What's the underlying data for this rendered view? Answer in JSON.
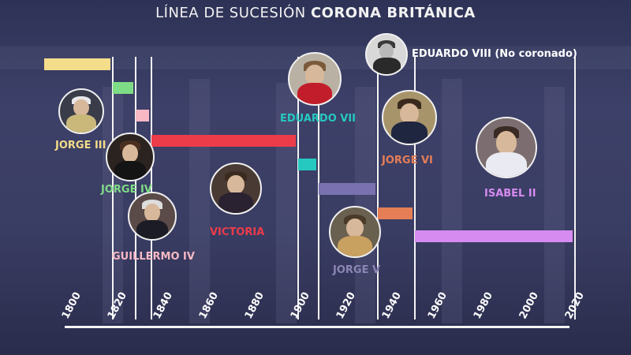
{
  "title": {
    "prefix": "LÍNEA DE SUCESIÓN",
    "bold": "CORONA BRITÁNICA"
  },
  "chart_data": {
    "type": "bar",
    "orientation": "horizontal-timeline",
    "xlabel": "",
    "xlim": [
      1790,
      2025
    ],
    "ticks": [
      1800,
      1820,
      1840,
      1860,
      1880,
      1900,
      1920,
      1940,
      1960,
      1980,
      2000,
      2020
    ],
    "reigns": [
      {
        "name": "JORGE III",
        "start": 1790,
        "end": 1820,
        "color": "#f3dc8a"
      },
      {
        "name": "JORGE IV",
        "start": 1820,
        "end": 1830,
        "color": "#7fdc86"
      },
      {
        "name": "GUILLERMO IV",
        "start": 1830,
        "end": 1837,
        "color": "#f7b8c4"
      },
      {
        "name": "VICTORIA",
        "start": 1837,
        "end": 1901,
        "color": "#ec3c4a"
      },
      {
        "name": "EDUARDO VII",
        "start": 1901,
        "end": 1910,
        "color": "#25c9c0"
      },
      {
        "name": "JORGE V",
        "start": 1910,
        "end": 1936,
        "color": "#7a72b0"
      },
      {
        "name": "JORGE VI",
        "start": 1936,
        "end": 1952,
        "color": "#e57e56"
      },
      {
        "name": "ISABEL II",
        "start": 1952,
        "end": 2022,
        "color": "#d68bf0"
      }
    ],
    "abdicated": {
      "name": "EDUARDO VIII (No coronado)",
      "year": 1936,
      "color": "#ffffff"
    },
    "boundaries": [
      1820,
      1830,
      1837,
      1901,
      1910,
      1936,
      1952,
      2022
    ]
  }
}
